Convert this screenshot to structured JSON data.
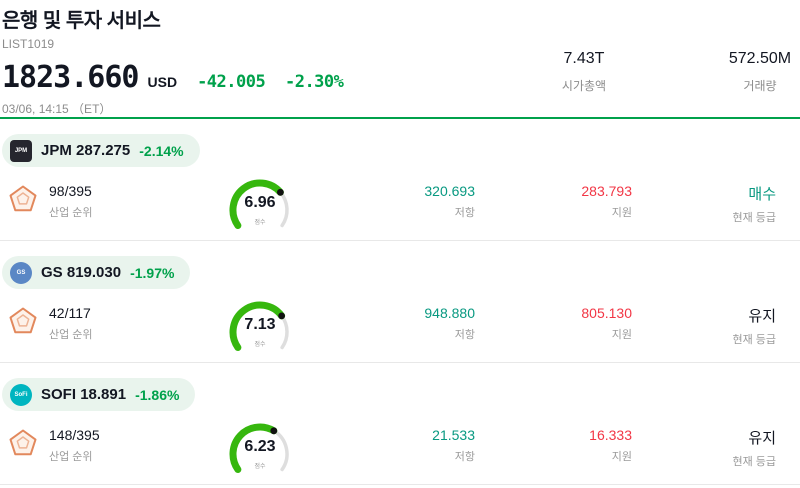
{
  "header": {
    "title": "은행 및 투자 서비스",
    "list_id": "LIST1019",
    "price": "1823.660",
    "currency": "USD",
    "change_abs": "-42.005",
    "change_pct": "-2.30%",
    "datetime": "03/06, 14:15 （ET）",
    "market_cap": {
      "value": "7.43T",
      "label": "시가총액"
    },
    "volume": {
      "value": "572.50M",
      "label": "거래량"
    }
  },
  "labels": {
    "industry_rank": "산업 순위",
    "score": "점수",
    "resistance": "저항",
    "support": "지원",
    "current_rating": "현재 등급"
  },
  "colors": {
    "green": "#00a14b",
    "teal": "#089981",
    "red": "#f23645",
    "gauge_green": "#36b70e",
    "pill_bg": "#e9f4ed"
  },
  "stocks": [
    {
      "ticker": "JPM",
      "price": "287.275",
      "change_pct": "-2.14%",
      "industry_rank": "98/395",
      "score": "6.96",
      "score_value": 6.96,
      "resistance": "320.693",
      "support": "283.793",
      "rating": "매수",
      "rating_style": "color:#089981",
      "logo_text": "JPM",
      "logo_style": "background:#26262e;border-radius:4px"
    },
    {
      "ticker": "GS",
      "price": "819.030",
      "change_pct": "-1.97%",
      "industry_rank": "42/117",
      "score": "7.13",
      "score_value": 7.13,
      "resistance": "948.880",
      "support": "805.130",
      "rating": "유지",
      "rating_style": "color:#131722",
      "logo_text": "GS",
      "logo_style": "background:#5a87c5"
    },
    {
      "ticker": "SOFI",
      "price": "18.891",
      "change_pct": "-1.86%",
      "industry_rank": "148/395",
      "score": "6.23",
      "score_value": 6.23,
      "resistance": "21.533",
      "support": "16.333",
      "rating": "유지",
      "rating_style": "color:#131722",
      "logo_text": "SoFi",
      "logo_style": "background:#00b5c0"
    }
  ]
}
